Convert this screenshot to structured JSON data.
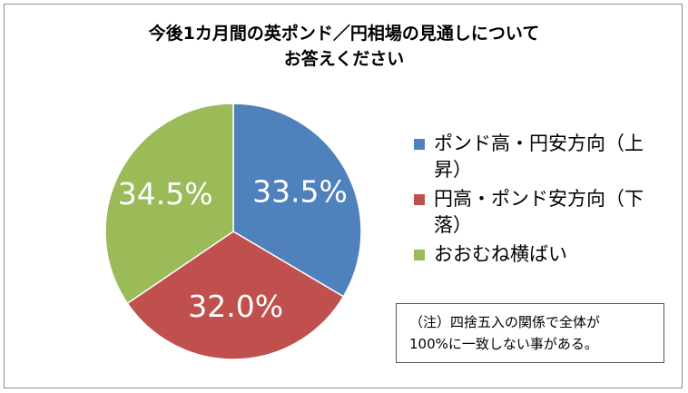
{
  "chart_data": {
    "type": "pie",
    "title_lines": [
      "今後1カ月間の英ポンド／円相場の見通しについて",
      "お答えください"
    ],
    "categories": [
      "ポンド高・円安方向（上昇）",
      "円高・ポンド安方向（下落）",
      "おおむね横ばい"
    ],
    "values": [
      33.5,
      32.0,
      34.5
    ],
    "value_labels": [
      "33.5%",
      "32.0%",
      "34.5%"
    ],
    "colors": [
      "#4f81bd",
      "#c0504d",
      "#9bbb59"
    ],
    "legend_lines": [
      [
        "ポンド高・円安方向（上",
        "昇）"
      ],
      [
        "円高・ポンド安方向（下",
        "落）"
      ],
      [
        "おおむね横ばい"
      ]
    ],
    "legend_position": "right"
  },
  "note": {
    "line1": "（注）四捨五入の関係で全体が",
    "line2": "100%に一致しない事がある。"
  }
}
